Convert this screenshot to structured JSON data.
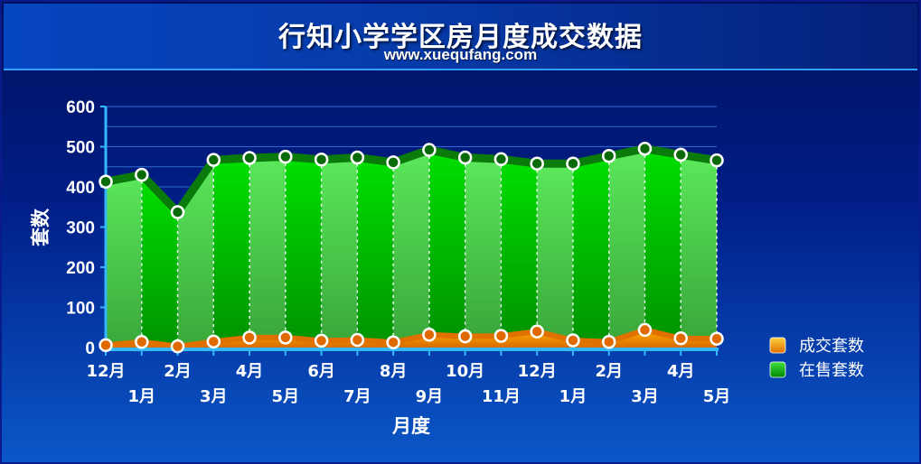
{
  "header": {
    "title": "行知小学学区房月度成交数据",
    "subtitle": "www.xuequfang.com"
  },
  "colors": {
    "sold": "#ff9a00",
    "on_sale": "#00c000"
  },
  "chart_data": {
    "type": "area",
    "title": "行知小学学区房月度成交数据",
    "subtitle": "www.xuequfang.com",
    "xlabel": "月度",
    "ylabel": "套数",
    "ylim": [
      0,
      600
    ],
    "y_ticks": [
      0,
      100,
      200,
      300,
      400,
      500,
      600
    ],
    "categories": [
      "12月",
      "1月",
      "2月",
      "3月",
      "4月",
      "5月",
      "6月",
      "7月",
      "8月",
      "9月",
      "10月",
      "11月",
      "12月",
      "1月",
      "2月",
      "3月",
      "4月",
      "5月"
    ],
    "series": [
      {
        "name": "在售套数",
        "color": "#00c000",
        "values": [
          413,
          430,
          337,
          467,
          472,
          475,
          468,
          473,
          461,
          492,
          473,
          469,
          458,
          458,
          477,
          495,
          480,
          466
        ]
      },
      {
        "name": "成交套数",
        "color": "#ff9a00",
        "values": [
          6,
          14,
          3,
          15,
          25,
          25,
          17,
          19,
          13,
          32,
          28,
          29,
          40,
          18,
          14,
          44,
          23,
          22
        ]
      }
    ],
    "legend": "right",
    "grid": true
  }
}
